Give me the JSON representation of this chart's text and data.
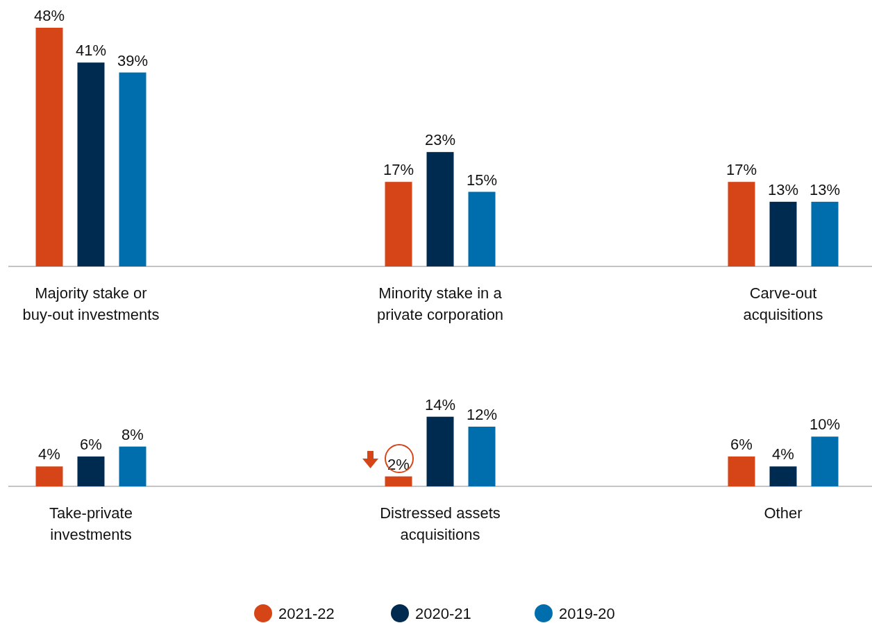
{
  "chart_data": [
    {
      "type": "bar",
      "categories": [
        "Majority stake or buy-out investments",
        "Minority stake in a private corporation",
        "Carve-out acquisitions"
      ],
      "series": [
        {
          "color": "#d64518",
          "values": [
            48,
            17,
            17
          ],
          "value_labels": [
            "48%",
            "17%",
            "17%"
          ]
        },
        {
          "color": "#002b50",
          "values": [
            41,
            23,
            13
          ],
          "value_labels": [
            "41%",
            "23%",
            "13%"
          ]
        },
        {
          "color": "#006eac",
          "values": [
            39,
            15,
            13
          ],
          "value_labels": [
            "39%",
            "15%",
            "13%"
          ]
        }
      ]
    },
    {
      "type": "bar",
      "categories": [
        "Take-private investments",
        "Distressed assets acquisitions",
        "Other"
      ],
      "series": [
        {
          "name": "2021-22",
          "color": "#d64518",
          "values": [
            4,
            2,
            6
          ],
          "value_labels": [
            "4%",
            "2%",
            "6%"
          ]
        },
        {
          "name": "2020-21",
          "color": "#002b50",
          "values": [
            6,
            14,
            4
          ],
          "value_labels": [
            "6%",
            "14%",
            "4%"
          ]
        },
        {
          "name": "2019-20",
          "color": "#006eac",
          "values": [
            8,
            12,
            10
          ],
          "value_labels": [
            "8%",
            "12%",
            "10%"
          ]
        }
      ],
      "legend": "bottom"
    }
  ]
}
